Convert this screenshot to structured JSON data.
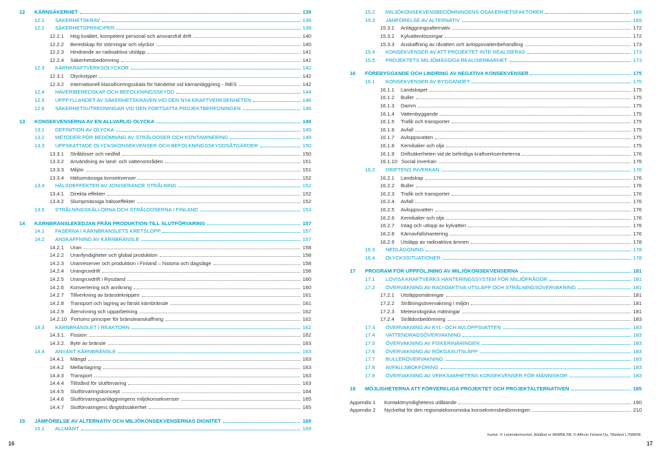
{
  "colors": {
    "accent": "#00a0c8",
    "text": "#333333",
    "dots": "#888888",
    "background": "#ffffff"
  },
  "typography": {
    "base_font_size": 7.5,
    "line_height": 1.55,
    "font_family": "Arial"
  },
  "left_page_number": "16",
  "right_page_number": "17",
  "footer_note": "Kartor: © Lantmäteriverket, tillstånd nr 48/MML/08. © Affecto Finland Oy, Tillstånd L7588/08.",
  "left": [
    {
      "type": "chapter",
      "num": "12",
      "label": "KÄRNSÄKERHET",
      "page": "139"
    },
    {
      "type": "section",
      "indent": 1,
      "num": "12.1",
      "label": "SÄKERHETSKRAV",
      "page": "139"
    },
    {
      "type": "section",
      "indent": 1,
      "num": "12.2",
      "label": "SÄKERHETSPRINCIPER",
      "page": "139"
    },
    {
      "type": "sub",
      "indent": 2,
      "num": "12.2.1",
      "label": "Hög kvalitet, kompetent personal och ansvarsfull drift",
      "page": "140"
    },
    {
      "type": "sub",
      "indent": 2,
      "num": "12.2.2",
      "label": "Beredskap för störningar och olyckor",
      "page": "140"
    },
    {
      "type": "sub",
      "indent": 2,
      "num": "12.2.3",
      "label": "Hindrande av radioaktiva utsläpp",
      "page": "141"
    },
    {
      "type": "sub",
      "indent": 2,
      "num": "12.2.4",
      "label": "Säkerhetsbedömning",
      "page": "141"
    },
    {
      "type": "section",
      "indent": 1,
      "num": "12.3",
      "label": "KÄRNKRAFTVERKSOLYCKOR",
      "page": "142"
    },
    {
      "type": "sub",
      "indent": 2,
      "num": "12.3.1",
      "label": "Olyckstyper",
      "page": "142"
    },
    {
      "type": "sub",
      "indent": 2,
      "num": "12.3.2",
      "label": "Internationell klassificeringsskala för händelse vid kärnanläggning - INES",
      "page": "142"
    },
    {
      "type": "section",
      "indent": 1,
      "num": "12.4",
      "label": "HAVERIBEREDSKAP OCH BEFOLKNINGSSKYDD",
      "page": "144"
    },
    {
      "type": "section",
      "indent": 1,
      "num": "12.5",
      "label": "UPPFYLLANDET AV SÄKERHETSKRAVEN VID DEN NYA KRAFTVERKSENHETEN",
      "page": "146"
    },
    {
      "type": "section",
      "indent": 1,
      "num": "12.6",
      "label": "SÄKERHETSUTREDNINGAR VID DEN FORTSATTA PROJEKTBEREDNINGEN",
      "page": "146"
    },
    {
      "type": "chapter",
      "num": "13",
      "label": "KONSEKVENSERNA AV EN ALLVARLIG OLYCKA",
      "page": "149"
    },
    {
      "type": "section",
      "indent": 1,
      "num": "13.1",
      "label": "DEFINITION AV OLYCKA",
      "page": "149"
    },
    {
      "type": "section",
      "indent": 1,
      "num": "13.2",
      "label": "METODER FÖR BEDÖMNING AV STRÅLDOSER OCH KONTAMINERING",
      "page": "149"
    },
    {
      "type": "section",
      "indent": 1,
      "num": "13.3",
      "label": "UPPSKATTADE OLYCKSKONSEKVENSER OCH BEFOLKNINGSSKYDDSÅTGÄRDER",
      "page": "150"
    },
    {
      "type": "sub",
      "indent": 2,
      "num": "13.3.1",
      "label": "Stråldoser och nedfall",
      "page": "150"
    },
    {
      "type": "sub",
      "indent": 2,
      "num": "13.3.2",
      "label": "Användning av land- och vattenområden",
      "page": "151"
    },
    {
      "type": "sub",
      "indent": 2,
      "num": "13.3.3",
      "label": "Miljön",
      "page": "151"
    },
    {
      "type": "sub",
      "indent": 2,
      "num": "13.3.4",
      "label": "Hälsomässiga konsekvenser",
      "page": "152"
    },
    {
      "type": "section",
      "indent": 1,
      "num": "13.4",
      "label": "HÄLSOEFFEKTER AV JONISERANDE STRÅLNING",
      "page": "152"
    },
    {
      "type": "sub",
      "indent": 2,
      "num": "13.4.1",
      "label": "Direkta effekter",
      "page": "152"
    },
    {
      "type": "sub",
      "indent": 2,
      "num": "13.4.2",
      "label": "Slumpmässiga hälsoeffekter",
      "page": "152"
    },
    {
      "type": "section",
      "indent": 1,
      "num": "13.5",
      "label": "STRÅLNINGSKÄLLORNA OCH STRÅLDOSERNA I FINLAND",
      "page": "153"
    },
    {
      "type": "chapter",
      "num": "14",
      "label": "KÄRNBRÄNSLEKEDJAN FRÅN PRODUKTION TILL SLUTFÖRVARING",
      "page": "157"
    },
    {
      "type": "section",
      "indent": 1,
      "num": "14.1",
      "label": "FASERNA I KÄRNBRÄNSLETS KRETSLOPP",
      "page": "157"
    },
    {
      "type": "section",
      "indent": 1,
      "num": "14.2",
      "label": "ANSKAFFNING AV KÄRNBRÄNSLE",
      "page": "157"
    },
    {
      "type": "sub",
      "indent": 2,
      "num": "14.2.1",
      "label": "Uran",
      "page": "158"
    },
    {
      "type": "sub",
      "indent": 2,
      "num": "14.2.2",
      "label": "Uranfyndigheter och global produktion",
      "page": "158"
    },
    {
      "type": "sub",
      "indent": 2,
      "num": "14.2.3",
      "label": "Uranreserver och produktion i Finland – historia och dagsläge",
      "page": "158"
    },
    {
      "type": "sub",
      "indent": 2,
      "num": "14.2.4",
      "label": "Urangruvdrift",
      "page": "158"
    },
    {
      "type": "sub",
      "indent": 2,
      "num": "14.2.5",
      "label": "Urangruvdrift i Ryssland",
      "page": "160"
    },
    {
      "type": "sub",
      "indent": 2,
      "num": "14.2.6",
      "label": "Konvertering och anrikning",
      "page": "160"
    },
    {
      "type": "sub",
      "indent": 2,
      "num": "14.2.7",
      "label": "Tillverkning av bränsleknippen",
      "page": "161"
    },
    {
      "type": "sub",
      "indent": 2,
      "num": "14.2.8",
      "label": "Transport och lagring av färskt kärnbränsle",
      "page": "161"
    },
    {
      "type": "sub",
      "indent": 2,
      "num": "14.2.9",
      "label": "Återvinning och upparbetning",
      "page": "162"
    },
    {
      "type": "sub",
      "indent": 2,
      "num": "14.2.10",
      "label": "Fortums principer för bränsleanskaffning",
      "page": "162"
    },
    {
      "type": "section",
      "indent": 1,
      "num": "14.3",
      "label": "KÄRNBRÄNSLET I REAKTORN",
      "page": "162"
    },
    {
      "type": "sub",
      "indent": 2,
      "num": "14.3.1.",
      "label": "Fission",
      "page": "162"
    },
    {
      "type": "sub",
      "indent": 2,
      "num": "14.3.2.",
      "label": "Byte av bränsle",
      "page": "163"
    },
    {
      "type": "section",
      "indent": 1,
      "num": "14.4",
      "label": "ANVÄNT KÄRNBRÄNSLE",
      "page": "163"
    },
    {
      "type": "sub",
      "indent": 2,
      "num": "14.4.1",
      "label": "Mängd",
      "page": "163"
    },
    {
      "type": "sub",
      "indent": 2,
      "num": "14.4.2",
      "label": "Mellanlagring",
      "page": "163"
    },
    {
      "type": "sub",
      "indent": 2,
      "num": "14.4.3",
      "label": "Transport",
      "page": "163"
    },
    {
      "type": "sub",
      "indent": 2,
      "num": "14.4.4",
      "label": "Tillstånd för slutförvaring",
      "page": "163"
    },
    {
      "type": "sub",
      "indent": 2,
      "num": "14.4.5",
      "label": "Slutförvaringskoncept",
      "page": "164"
    },
    {
      "type": "sub",
      "indent": 2,
      "num": "14.4.6",
      "label": "Slutförvaringsanläggningens miljökonsekvenser",
      "page": "165"
    },
    {
      "type": "sub",
      "indent": 2,
      "num": "14.4.7",
      "label": "Slutförvaringens långtidssäkerhet",
      "page": "165"
    },
    {
      "type": "chapter",
      "num": "15",
      "label": "JÄMFÖRELSE AV ALTERNATIV OCH MILJÖKONSEKVENSERNAS DIGNITET",
      "page": "169"
    },
    {
      "type": "section",
      "indent": 1,
      "num": "15.1",
      "label": "ALLMÄNT",
      "page": "169"
    }
  ],
  "right": [
    {
      "type": "section",
      "indent": 1,
      "num": "15.2",
      "label": "MILJÖKONSEKVENSBEDÖMNINGENS OSÄKERHETSFAKTORER",
      "page": "169"
    },
    {
      "type": "section",
      "indent": 1,
      "num": "15.3",
      "label": "JÄMFÖRELSE AV ALTERNATIV",
      "page": "169"
    },
    {
      "type": "sub",
      "indent": 2,
      "num": "15.3.1",
      "label": "Anläggningsalternativ",
      "page": "172"
    },
    {
      "type": "sub",
      "indent": 2,
      "num": "15.3.2",
      "label": "Kylvattenlösningar",
      "page": "172"
    },
    {
      "type": "sub",
      "indent": 2,
      "num": "15.3.3",
      "label": "Anskaffning av råvatten och avloppsvattenbehandling",
      "page": "173"
    },
    {
      "type": "section",
      "indent": 1,
      "num": "15.4",
      "label": "KONSEKVENSER AV ATT PROJEKTET INTE REALISERAS",
      "page": "173"
    },
    {
      "type": "section",
      "indent": 1,
      "num": "15.5",
      "label": "PROJEKTETS MILJÖMÄSSIGA REALISERBARHET",
      "page": "173"
    },
    {
      "type": "chapter",
      "num": "16",
      "label": "FÖREBYGGANDE OCH LINDRING AV NEGATIVA KONSEKVENSER",
      "page": "175"
    },
    {
      "type": "section",
      "indent": 1,
      "num": "16.1",
      "label": "KONSEKVENSER AV BYGGANDET",
      "page": "175"
    },
    {
      "type": "sub",
      "indent": 2,
      "num": "16.1.1",
      "label": "Landskapet",
      "page": "175"
    },
    {
      "type": "sub",
      "indent": 2,
      "num": "16.1.2",
      "label": "Buller",
      "page": "175"
    },
    {
      "type": "sub",
      "indent": 2,
      "num": "16.1.3",
      "label": "Damm",
      "page": "175"
    },
    {
      "type": "sub",
      "indent": 2,
      "num": "16.1.4",
      "label": "Vattenbyggande",
      "page": "175"
    },
    {
      "type": "sub",
      "indent": 2,
      "num": "16.1.5",
      "label": "Trafik och transporter",
      "page": "175"
    },
    {
      "type": "sub",
      "indent": 2,
      "num": "16.1.6",
      "label": "Avfall",
      "page": "175"
    },
    {
      "type": "sub",
      "indent": 2,
      "num": "16.1.7",
      "label": "Avloppsvatten",
      "page": "175"
    },
    {
      "type": "sub",
      "indent": 2,
      "num": "16.1.8",
      "label": "Kemikalier och olja",
      "page": "175"
    },
    {
      "type": "sub",
      "indent": 2,
      "num": "16.1.9",
      "label": "Driftsäkerheten vid de befintliga kraftverksenheterna",
      "page": "176"
    },
    {
      "type": "sub",
      "indent": 2,
      "num": "16.1.10",
      "label": "Social inverkan",
      "page": "176"
    },
    {
      "type": "section",
      "indent": 1,
      "num": "16.2",
      "label": "DRIFTENS INVERKAN",
      "page": "176"
    },
    {
      "type": "sub",
      "indent": 2,
      "num": "16.2.1",
      "label": "Landskap",
      "page": "176"
    },
    {
      "type": "sub",
      "indent": 2,
      "num": "16.2.2",
      "label": "Buller",
      "page": "176"
    },
    {
      "type": "sub",
      "indent": 2,
      "num": "16.2.3",
      "label": "Trafik och transporter",
      "page": "176"
    },
    {
      "type": "sub",
      "indent": 2,
      "num": "16.2.4",
      "label": "Avfall",
      "page": "176"
    },
    {
      "type": "sub",
      "indent": 2,
      "num": "16.2.5",
      "label": "Avloppsvatten",
      "page": "176"
    },
    {
      "type": "sub",
      "indent": 2,
      "num": "16.2.6",
      "label": "Kemikalier och olja",
      "page": "176"
    },
    {
      "type": "sub",
      "indent": 2,
      "num": "16.2.7",
      "label": "Intag och utlopp av kylvatten",
      "page": "176"
    },
    {
      "type": "sub",
      "indent": 2,
      "num": "16.2.8",
      "label": "Kärnavfallshantering",
      "page": "176"
    },
    {
      "type": "sub",
      "indent": 2,
      "num": "16.2.9",
      "label": "Utsläpp av radioaktiva ämnen",
      "page": "178"
    },
    {
      "type": "section",
      "indent": 1,
      "num": "16.3",
      "label": "NEDLÄGGNING",
      "page": "178"
    },
    {
      "type": "section",
      "indent": 1,
      "num": "16.4",
      "label": "OLYCKSSITUATIONER",
      "page": "178"
    },
    {
      "type": "chapter",
      "num": "17",
      "label": "PROGRAM FÖR UPPFÖLJNING AV MILJÖKONSEKVENSERNA",
      "page": "181"
    },
    {
      "type": "section",
      "indent": 1,
      "num": "17.1",
      "label": "LOVISA KRAFTVERKS HANTERINGSSYSTEM FÖR MILJÖFRÅGOR",
      "page": "181"
    },
    {
      "type": "section",
      "indent": 1,
      "num": "17.2",
      "label": "ÖVERVAKNING AV RADIOAKTIVA UTSLÄPP OCH STRÅLNINGSÖVERVAKNING",
      "page": "181"
    },
    {
      "type": "sub",
      "indent": 2,
      "num": "17.2.1",
      "label": "Utsläppsmätningar",
      "page": "181"
    },
    {
      "type": "sub",
      "indent": 2,
      "num": "17.2.2",
      "label": "Strålningsövervakning i miljön",
      "page": "181"
    },
    {
      "type": "sub",
      "indent": 2,
      "num": "17.2.3",
      "label": "Meteorologiska mätningar",
      "page": "181"
    },
    {
      "type": "sub",
      "indent": 2,
      "num": "17.2.4",
      "label": "Stråldosbedömning",
      "page": "183"
    },
    {
      "type": "section",
      "indent": 1,
      "num": "17.3",
      "label": "ÖVERVAKNING AV KYL- OCH AVLOPPSVATTEN",
      "page": "183"
    },
    {
      "type": "section",
      "indent": 1,
      "num": "17.4",
      "label": "VATTENDRAGSÖVERVAKNING",
      "page": "183"
    },
    {
      "type": "section",
      "indent": 1,
      "num": "17.5",
      "label": "ÖVERVAKNING AV FISKERINÄRINGEN",
      "page": "183"
    },
    {
      "type": "section",
      "indent": 1,
      "num": "17.6",
      "label": "ÖVERVAKNING AV RÖKGASUTSLÄPP",
      "page": "183"
    },
    {
      "type": "section",
      "indent": 1,
      "num": "17.7",
      "label": "BULLERÖVERVAKNING",
      "page": "183"
    },
    {
      "type": "section",
      "indent": 1,
      "num": "17.8",
      "label": "AVFALLSBOKFÖRING",
      "page": "183"
    },
    {
      "type": "section",
      "indent": 1,
      "num": "17.9",
      "label": "ÖVERVAKNING AV VERKSAMHETENS KONSEKVENSER FÖR MÄNNISKOR",
      "page": "183"
    },
    {
      "type": "chapter",
      "num": "18",
      "label": "MÖJLIGHETERNA ATT FÖRVERKLIGA PROJEKTET OCH PROJEKTALTERNATIVEN",
      "page": "185"
    },
    {
      "type": "appendix",
      "num": "Appendix 1",
      "label": "Kontaktmyndighetens utlåtande",
      "page": "190"
    },
    {
      "type": "appendix",
      "num": "Appendix 2",
      "label": "Nyckeltal för den regionalekonomiska konsekvensbedömningen",
      "page": "210"
    }
  ]
}
